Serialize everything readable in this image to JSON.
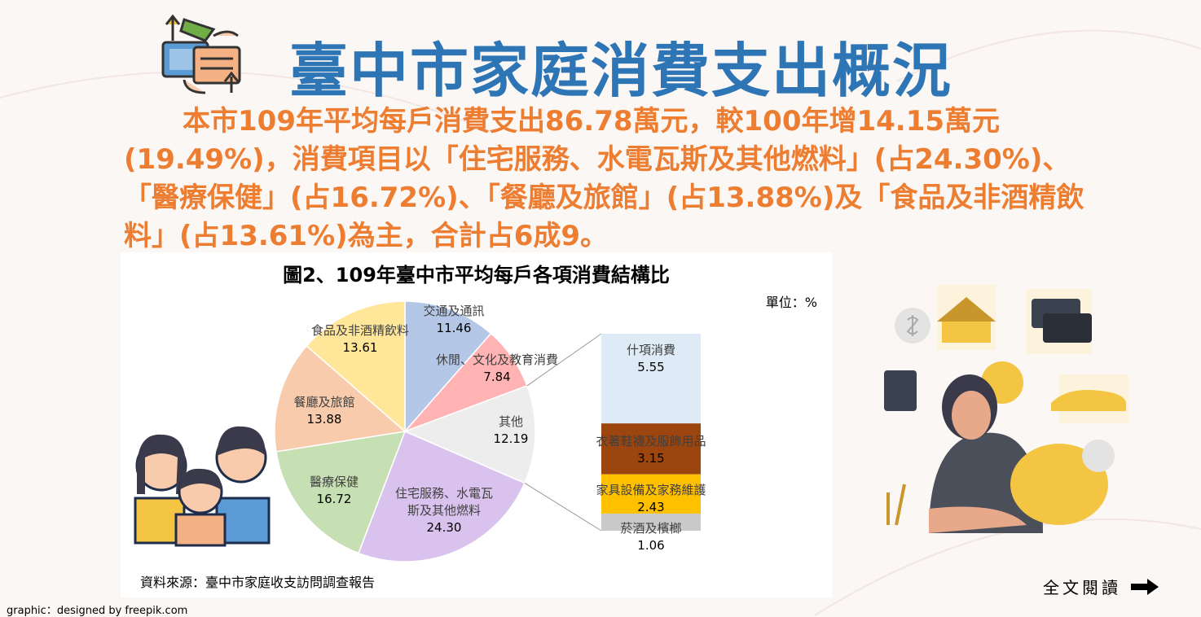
{
  "header": {
    "title": "臺中市家庭消費支出概況"
  },
  "summary": "本市109年平均每戶消費支出86.78萬元，較100年增14.15萬元(19.49%)，消費項目以「住宅服務、水電瓦斯及其他燃料」(占24.30%)、「醫療保健」(占16.72%)、「餐廳及旅館」(占13.88%)及「食品及非酒精飲料」(占13.61%)為主，合計占6成9。",
  "chart_data": {
    "type": "pie",
    "title": "圖2、109年臺中市平均每戶各項消費結構比",
    "unit": "單位：%",
    "source": "資料來源：臺中市家庭收支訪問調查報告",
    "slices": [
      {
        "label": "交通及通訊",
        "value": 11.46,
        "color": "#b4c7e7"
      },
      {
        "label": "休閒、文化及教育消費",
        "value": 7.84,
        "color": "#ffb3b3"
      },
      {
        "label": "其他",
        "value": 12.19,
        "color": "#ededed"
      },
      {
        "label": "住宅服務、水電瓦斯及其他燃料",
        "value": 24.3,
        "color": "#d9c2ee"
      },
      {
        "label": "醫療保健",
        "value": 16.72,
        "color": "#c6e0b4"
      },
      {
        "label": "餐廳及旅館",
        "value": 13.88,
        "color": "#f8cbad"
      },
      {
        "label": "食品及非酒精飲料",
        "value": 13.61,
        "color": "#ffe699"
      }
    ],
    "breakdown_of": "其他",
    "breakdown": [
      {
        "label": "什項消費",
        "value": 5.55,
        "color": "#deebf7"
      },
      {
        "label": "衣著鞋襪及服飾用品",
        "value": 3.15,
        "color": "#9c450e"
      },
      {
        "label": "家具設備及家務維護",
        "value": 2.43,
        "color": "#ffc000"
      },
      {
        "label": "菸酒及檳榔",
        "value": 1.06,
        "color": "#c9c9c9"
      }
    ]
  },
  "footer": {
    "read_more": "全文閱讀",
    "credit": "graphic：designed by freepik.com"
  }
}
